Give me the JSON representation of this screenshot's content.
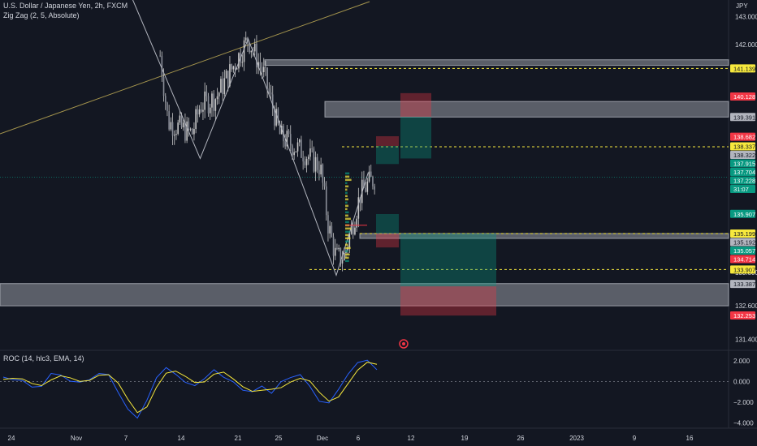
{
  "header": {
    "symbol": "U.S. Dollar / Japanese Yen, 2h, FXCM",
    "indicator": "Zig Zag (2, 5, Absolute)"
  },
  "currency": "JPY",
  "oscillator": {
    "label": "ROC (14, hlc3, EMA, 14)",
    "ticks": [
      "2.000",
      "0.000",
      "−2.000",
      "−4.000"
    ]
  },
  "time_axis": [
    "24",
    "Nov",
    "7",
    "14",
    "21",
    "25",
    "Dec",
    "6",
    "12",
    "19",
    "26",
    "2023",
    "9",
    "16"
  ],
  "price_axis": [
    "143.000",
    "142.000",
    "132.600",
    "131.400",
    "133.800"
  ],
  "price_badges": [
    {
      "text": "141.139",
      "color": "#f7e93d",
      "text_color": "#131722"
    },
    {
      "text": "140.128",
      "color": "#f23645",
      "text_color": "#ffffff"
    },
    {
      "text": "139.391",
      "color": "#b2b5be",
      "text_color": "#131722"
    },
    {
      "text": "138.682",
      "color": "#f23645",
      "text_color": "#ffffff"
    },
    {
      "text": "138.337",
      "color": "#f7e93d",
      "text_color": "#131722"
    },
    {
      "text": "138.322",
      "color": "#b2b5be",
      "text_color": "#131722"
    },
    {
      "text": "137.915",
      "color": "#089981",
      "text_color": "#ffffff"
    },
    {
      "text": "137.704",
      "color": "#089981",
      "text_color": "#ffffff"
    },
    {
      "text": "137.228",
      "color": "#089981",
      "text_color": "#ffffff"
    },
    {
      "text": "31:07",
      "color": "#089981",
      "text_color": "#ffffff"
    },
    {
      "text": "135.907",
      "color": "#089981",
      "text_color": "#ffffff"
    },
    {
      "text": "135.199",
      "color": "#f7e93d",
      "text_color": "#131722"
    },
    {
      "text": "135.192",
      "color": "#b2b5be",
      "text_color": "#131722"
    },
    {
      "text": "135.057",
      "color": "#089981",
      "text_color": "#ffffff"
    },
    {
      "text": "134.714",
      "color": "#f23645",
      "text_color": "#ffffff"
    },
    {
      "text": "133.907",
      "color": "#f7e93d",
      "text_color": "#131722"
    },
    {
      "text": "133.387",
      "color": "#b2b5be",
      "text_color": "#131722"
    },
    {
      "text": "132.253",
      "color": "#f23645",
      "text_color": "#ffffff"
    }
  ],
  "colors": {
    "background": "#131722",
    "candle": "#c8c8c8",
    "zigzag": "#b2b5be",
    "trendline": "#c9b458",
    "zone": "#b2b5be",
    "level_line": "#f7e93d",
    "profit": "#089981",
    "loss": "#f23645",
    "roc": "#2962ff",
    "roc_signal": "#f7e93d"
  },
  "chart_data": {
    "type": "candlestick",
    "title": "U.S. Dollar / Japanese Yen, 2h, FXCM",
    "ylim": [
      131.0,
      143.6
    ],
    "xlim": [
      "Oct 21",
      "Jan 20"
    ],
    "close_path": [
      [
        "Nov 10",
        141.6
      ],
      [
        "Nov 11",
        139.2
      ],
      [
        "Nov 14",
        138.8
      ],
      [
        "Nov 15",
        139.8
      ],
      [
        "Nov 17",
        140.1
      ],
      [
        "Nov 21",
        142.2
      ],
      [
        "Nov 23",
        140.9
      ],
      [
        "Nov 25",
        138.7
      ],
      [
        "Nov 28",
        138.1
      ],
      [
        "Nov 30",
        137.6
      ],
      [
        "Dec 1",
        135.5
      ],
      [
        "Dec 2",
        134.3
      ],
      [
        "Dec 3",
        134.4
      ],
      [
        "Dec 5",
        136.6
      ],
      [
        "Dec 6",
        137.0
      ],
      [
        "Dec 7",
        137.228
      ]
    ],
    "zigzag": [
      [
        "Nov 6",
        144.0
      ],
      [
        "Nov 15",
        137.9
      ],
      [
        "Nov 21",
        142.2
      ],
      [
        "Dec 2",
        133.7
      ],
      [
        "Dec 6",
        137.4
      ]
    ],
    "zones": [
      {
        "from": 141.45,
        "to": 141.25
      },
      {
        "from": 139.95,
        "to": 139.39
      },
      {
        "from": 135.2,
        "to": 135.1
      },
      {
        "from": 133.4,
        "to": 132.6
      }
    ],
    "levels": [
      141.139,
      138.322,
      135.199,
      133.907
    ],
    "last_price": 137.228,
    "oscillator": {
      "ylim": [
        -4.5,
        3.0
      ],
      "values": [
        0.2,
        0.4,
        0.1,
        -0.5,
        -0.3,
        0.6,
        0.5,
        0.2,
        -0.2,
        0.4,
        0.8,
        0.5,
        -0.8,
        -2.6,
        -3.4,
        -1.5,
        0.4,
        1.2,
        0.8,
        0.2,
        -0.4,
        0.3,
        1.1,
        0.7,
        -0.2,
        -0.8,
        -1.1,
        -0.6,
        -0.9,
        -0.3,
        0.2,
        0.4,
        -0.3,
        -1.8,
        -2.0,
        -1.0,
        0.6,
        1.6,
        2.1,
        1.2
      ]
    }
  }
}
